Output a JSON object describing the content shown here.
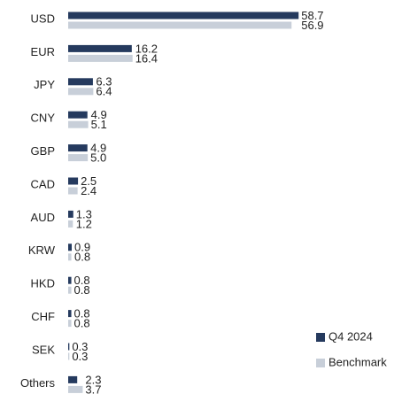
{
  "chart_data": {
    "type": "hbar",
    "categories": [
      "USD",
      "EUR",
      "JPY",
      "CNY",
      "GBP",
      "CAD",
      "AUD",
      "KRW",
      "HKD",
      "CHF",
      "SEK",
      "Others"
    ],
    "series": [
      {
        "name": "Q4 2024",
        "color": "#253a5e",
        "values": [
          58.7,
          16.2,
          6.3,
          4.9,
          4.9,
          2.5,
          1.3,
          0.9,
          0.8,
          0.8,
          0.3,
          2.3
        ],
        "value_labels": [
          "58.7",
          "16.2",
          "6.3",
          "4.9",
          "4.9",
          "2.5",
          "1.3",
          "0.9",
          "0.8",
          "0.8",
          "0.3",
          "2.3"
        ]
      },
      {
        "name": "Benchmark",
        "color": "#c8cfd9",
        "values": [
          56.9,
          16.4,
          6.4,
          5.1,
          5.0,
          2.4,
          1.2,
          0.8,
          0.8,
          0.8,
          0.3,
          3.7
        ],
        "value_labels": [
          "56.9",
          "16.4",
          "6.4",
          "5.1",
          "5.0",
          "2.4",
          "1.2",
          "0.8",
          "0.8",
          "0.8",
          "0.3",
          "3.7"
        ]
      }
    ],
    "xlim": [
      0,
      60
    ],
    "legend": "lower right"
  }
}
